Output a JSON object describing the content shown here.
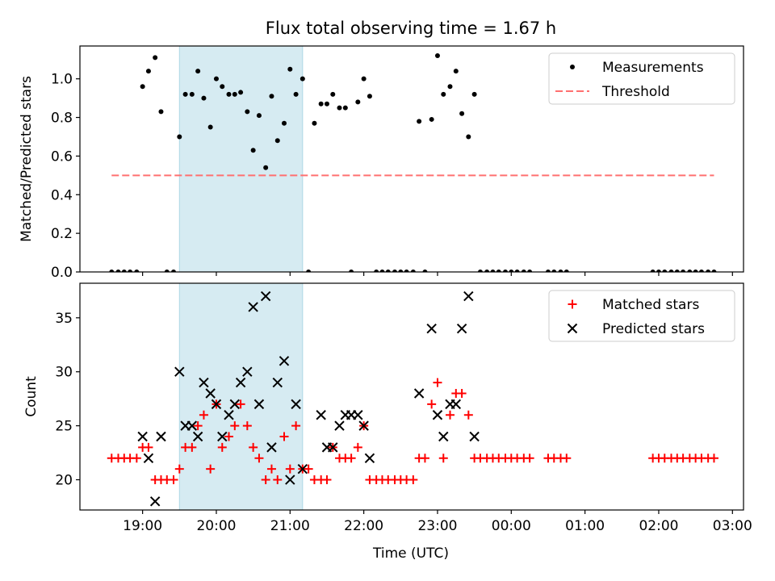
{
  "title": "Flux total observing time = 1.67 h",
  "xlabel": "Time (UTC)",
  "colors": {
    "measure": "#000000",
    "threshold": "#ff7070",
    "matched": "#ff0000",
    "predicted": "#000000",
    "span": "#add8e6"
  },
  "chart_data": [
    {
      "type": "scatter",
      "ylabel": "Matched/Predicted stars",
      "ylim": [
        0,
        1.17
      ],
      "yticks": [
        0.0,
        0.2,
        0.4,
        0.6,
        0.8,
        1.0
      ],
      "xticks": [
        "19:00",
        "20:00",
        "21:00",
        "22:00",
        "23:00",
        "00:00",
        "01:00",
        "02:00",
        "03:00"
      ],
      "xtick_hours": [
        19,
        20,
        21,
        22,
        23,
        24,
        25,
        26,
        27
      ],
      "xlim_hours": [
        18.15,
        27.15
      ],
      "highlight_span_hours": [
        19.5,
        21.17
      ],
      "legend": [
        "Measurements",
        "Threshold"
      ],
      "threshold": {
        "y": 0.5,
        "x_hours": [
          18.58,
          26.75
        ]
      },
      "series": [
        {
          "name": "Measurements",
          "points": [
            [
              18.58,
              0
            ],
            [
              18.67,
              0
            ],
            [
              18.75,
              0
            ],
            [
              18.83,
              0
            ],
            [
              18.92,
              0
            ],
            [
              19.0,
              0.96
            ],
            [
              19.08,
              1.04
            ],
            [
              19.17,
              1.11
            ],
            [
              19.25,
              0.83
            ],
            [
              19.33,
              0
            ],
            [
              19.42,
              0
            ],
            [
              19.5,
              0.7
            ],
            [
              19.58,
              0.92
            ],
            [
              19.67,
              0.92
            ],
            [
              19.75,
              1.04
            ],
            [
              19.83,
              0.9
            ],
            [
              19.92,
              0.75
            ],
            [
              20.0,
              1.0
            ],
            [
              20.08,
              0.96
            ],
            [
              20.17,
              0.92
            ],
            [
              20.25,
              0.92
            ],
            [
              20.33,
              0.93
            ],
            [
              20.42,
              0.83
            ],
            [
              20.5,
              0.63
            ],
            [
              20.58,
              0.81
            ],
            [
              20.67,
              0.54
            ],
            [
              20.75,
              0.91
            ],
            [
              20.83,
              0.68
            ],
            [
              20.92,
              0.77
            ],
            [
              21.0,
              1.05
            ],
            [
              21.08,
              0.92
            ],
            [
              21.17,
              1.0
            ],
            [
              21.25,
              0
            ],
            [
              21.33,
              0.77
            ],
            [
              21.42,
              0.87
            ],
            [
              21.5,
              0.87
            ],
            [
              21.58,
              0.92
            ],
            [
              21.67,
              0.85
            ],
            [
              21.75,
              0.85
            ],
            [
              21.83,
              0
            ],
            [
              21.92,
              0.88
            ],
            [
              22.0,
              1.0
            ],
            [
              22.08,
              0.91
            ],
            [
              22.17,
              0
            ],
            [
              22.25,
              0
            ],
            [
              22.33,
              0
            ],
            [
              22.42,
              0
            ],
            [
              22.5,
              0
            ],
            [
              22.58,
              0
            ],
            [
              22.67,
              0
            ],
            [
              22.75,
              0.78
            ],
            [
              22.83,
              0
            ],
            [
              22.92,
              0.79
            ],
            [
              23.0,
              1.12
            ],
            [
              23.08,
              0.92
            ],
            [
              23.17,
              0.96
            ],
            [
              23.25,
              1.04
            ],
            [
              23.33,
              0.82
            ],
            [
              23.42,
              0.7
            ],
            [
              23.5,
              0.92
            ],
            [
              23.58,
              0
            ],
            [
              23.67,
              0
            ],
            [
              23.75,
              0
            ],
            [
              23.83,
              0
            ],
            [
              23.92,
              0
            ],
            [
              24.0,
              0
            ],
            [
              24.08,
              0
            ],
            [
              24.17,
              0
            ],
            [
              24.25,
              0
            ],
            [
              24.5,
              0
            ],
            [
              24.58,
              0
            ],
            [
              24.67,
              0
            ],
            [
              24.75,
              0
            ],
            [
              25.92,
              0
            ],
            [
              26.0,
              0
            ],
            [
              26.08,
              0
            ],
            [
              26.17,
              0
            ],
            [
              26.25,
              0
            ],
            [
              26.33,
              0
            ],
            [
              26.42,
              0
            ],
            [
              26.5,
              0
            ],
            [
              26.58,
              0
            ],
            [
              26.67,
              0
            ],
            [
              26.75,
              0
            ]
          ]
        }
      ]
    },
    {
      "type": "scatter",
      "ylabel": "Count",
      "ylim": [
        17.2,
        38.2
      ],
      "yticks": [
        20,
        25,
        30,
        35
      ],
      "xticks": [
        "19:00",
        "20:00",
        "21:00",
        "22:00",
        "23:00",
        "00:00",
        "01:00",
        "02:00",
        "03:00"
      ],
      "xtick_hours": [
        19,
        20,
        21,
        22,
        23,
        24,
        25,
        26,
        27
      ],
      "xlim_hours": [
        18.15,
        27.15
      ],
      "highlight_span_hours": [
        19.5,
        21.17
      ],
      "legend": [
        "Matched stars",
        "Predicted stars"
      ],
      "series": [
        {
          "name": "Matched stars",
          "points": [
            [
              18.58,
              22
            ],
            [
              18.67,
              22
            ],
            [
              18.75,
              22
            ],
            [
              18.83,
              22
            ],
            [
              18.92,
              22
            ],
            [
              19.0,
              23
            ],
            [
              19.08,
              23
            ],
            [
              19.17,
              20
            ],
            [
              19.25,
              20
            ],
            [
              19.33,
              20
            ],
            [
              19.42,
              20
            ],
            [
              19.5,
              21
            ],
            [
              19.58,
              23
            ],
            [
              19.67,
              23
            ],
            [
              19.75,
              25
            ],
            [
              19.83,
              26
            ],
            [
              19.92,
              21
            ],
            [
              20.0,
              27
            ],
            [
              20.08,
              23
            ],
            [
              20.17,
              24
            ],
            [
              20.25,
              25
            ],
            [
              20.33,
              27
            ],
            [
              20.42,
              25
            ],
            [
              20.5,
              23
            ],
            [
              20.58,
              22
            ],
            [
              20.67,
              20
            ],
            [
              20.75,
              21
            ],
            [
              20.83,
              20
            ],
            [
              20.92,
              24
            ],
            [
              21.0,
              21
            ],
            [
              21.08,
              25
            ],
            [
              21.17,
              21
            ],
            [
              21.25,
              21
            ],
            [
              21.33,
              20
            ],
            [
              21.42,
              20
            ],
            [
              21.5,
              20
            ],
            [
              21.58,
              23
            ],
            [
              21.67,
              22
            ],
            [
              21.75,
              22
            ],
            [
              21.83,
              22
            ],
            [
              21.92,
              23
            ],
            [
              22.0,
              25
            ],
            [
              22.08,
              20
            ],
            [
              22.17,
              20
            ],
            [
              22.25,
              20
            ],
            [
              22.33,
              20
            ],
            [
              22.42,
              20
            ],
            [
              22.5,
              20
            ],
            [
              22.58,
              20
            ],
            [
              22.67,
              20
            ],
            [
              22.75,
              22
            ],
            [
              22.83,
              22
            ],
            [
              22.92,
              27
            ],
            [
              23.0,
              29
            ],
            [
              23.08,
              22
            ],
            [
              23.17,
              26
            ],
            [
              23.25,
              28
            ],
            [
              23.33,
              28
            ],
            [
              23.42,
              26
            ],
            [
              23.5,
              22
            ],
            [
              23.58,
              22
            ],
            [
              23.67,
              22
            ],
            [
              23.75,
              22
            ],
            [
              23.83,
              22
            ],
            [
              23.92,
              22
            ],
            [
              24.0,
              22
            ],
            [
              24.08,
              22
            ],
            [
              24.17,
              22
            ],
            [
              24.25,
              22
            ],
            [
              24.5,
              22
            ],
            [
              24.58,
              22
            ],
            [
              24.67,
              22
            ],
            [
              24.75,
              22
            ],
            [
              25.92,
              22
            ],
            [
              26.0,
              22
            ],
            [
              26.08,
              22
            ],
            [
              26.17,
              22
            ],
            [
              26.25,
              22
            ],
            [
              26.33,
              22
            ],
            [
              26.42,
              22
            ],
            [
              26.5,
              22
            ],
            [
              26.58,
              22
            ],
            [
              26.67,
              22
            ],
            [
              26.75,
              22
            ]
          ]
        },
        {
          "name": "Predicted stars",
          "points": [
            [
              19.0,
              24
            ],
            [
              19.08,
              22
            ],
            [
              19.17,
              18
            ],
            [
              19.25,
              24
            ],
            [
              19.5,
              30
            ],
            [
              19.58,
              25
            ],
            [
              19.67,
              25
            ],
            [
              19.75,
              24
            ],
            [
              19.83,
              29
            ],
            [
              19.92,
              28
            ],
            [
              20.0,
              27
            ],
            [
              20.08,
              24
            ],
            [
              20.17,
              26
            ],
            [
              20.25,
              27
            ],
            [
              20.33,
              29
            ],
            [
              20.42,
              30
            ],
            [
              20.5,
              36
            ],
            [
              20.58,
              27
            ],
            [
              20.67,
              37
            ],
            [
              20.75,
              23
            ],
            [
              20.83,
              29
            ],
            [
              20.92,
              31
            ],
            [
              21.0,
              20
            ],
            [
              21.08,
              27
            ],
            [
              21.17,
              21
            ],
            [
              21.42,
              26
            ],
            [
              21.5,
              23
            ],
            [
              21.58,
              23
            ],
            [
              21.67,
              25
            ],
            [
              21.75,
              26
            ],
            [
              21.83,
              26
            ],
            [
              21.92,
              26
            ],
            [
              22.0,
              25
            ],
            [
              22.08,
              22
            ],
            [
              22.75,
              28
            ],
            [
              22.92,
              34
            ],
            [
              23.0,
              26
            ],
            [
              23.08,
              24
            ],
            [
              23.17,
              27
            ],
            [
              23.25,
              27
            ],
            [
              23.33,
              34
            ],
            [
              23.42,
              37
            ],
            [
              23.5,
              24
            ]
          ]
        }
      ]
    }
  ]
}
